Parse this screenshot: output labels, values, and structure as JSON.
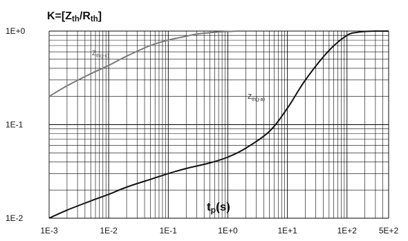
{
  "chart_data": {
    "type": "line",
    "title": "",
    "ylabel": "K=[Zth/Rth]",
    "ylabel_parts": {
      "prefix": "K=[Z",
      "sub1": "th",
      "mid": "/R",
      "sub2": "th",
      "suffix": "]"
    },
    "xlabel": "tp(s)",
    "xlabel_parts": {
      "main": "t",
      "sub": "p",
      "suffix": "(s)"
    },
    "x_scale": "log",
    "y_scale": "log",
    "xlim": [
      0.001,
      500
    ],
    "ylim": [
      0.01,
      1
    ],
    "grid": true,
    "x_tick_labels": [
      "1E-3",
      "1E-2",
      "1E-1",
      "1E+0",
      "1E+1",
      "1E+2",
      "5E+2"
    ],
    "y_tick_labels": [
      "1E+0",
      "1E-1",
      "1E-2"
    ],
    "series": [
      {
        "name": "Zth(j-c)",
        "label_parts": {
          "main": "Z",
          "sub": "th(j-c)"
        },
        "color": "#7a7a7a",
        "x": [
          0.001,
          0.002,
          0.005,
          0.01,
          0.02,
          0.05,
          0.1,
          0.2,
          0.3,
          0.5,
          0.7,
          1.0,
          1.5,
          2.0
        ],
        "y": [
          0.2,
          0.26,
          0.35,
          0.43,
          0.54,
          0.7,
          0.8,
          0.88,
          0.93,
          0.96,
          0.98,
          0.99,
          1.0,
          1.0
        ]
      },
      {
        "name": "Zth(j-a)",
        "label_parts": {
          "main": "Z",
          "sub": "th(j-a)"
        },
        "color": "#111111",
        "x": [
          0.001,
          0.002,
          0.005,
          0.01,
          0.02,
          0.05,
          0.1,
          0.2,
          0.5,
          1.0,
          2.0,
          5.0,
          10,
          20,
          50,
          100,
          150,
          200,
          300,
          500
        ],
        "y": [
          0.01,
          0.0122,
          0.0153,
          0.018,
          0.0215,
          0.026,
          0.03,
          0.034,
          0.039,
          0.045,
          0.056,
          0.085,
          0.15,
          0.3,
          0.62,
          0.9,
          0.97,
          0.99,
          1.0,
          1.0
        ]
      }
    ]
  }
}
